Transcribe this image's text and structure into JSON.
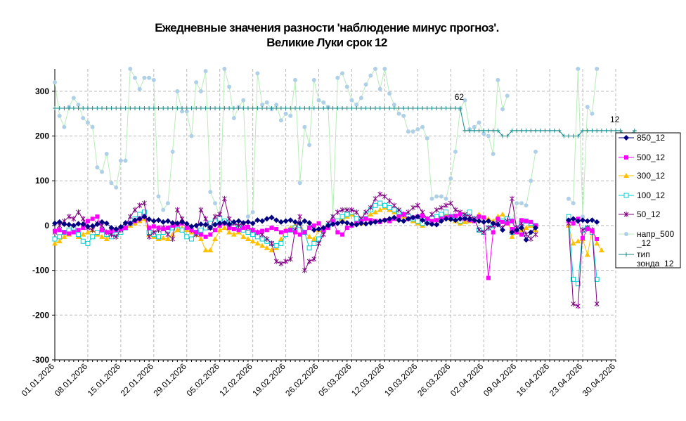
{
  "chart_data": {
    "type": "line",
    "title_line1": "Ежедневные значения разности 'наблюдение минус прогноз'.",
    "title_line2": "Великие Луки     срок 12",
    "ylim": [
      -300,
      350
    ],
    "yticks": [
      300,
      200,
      100,
      0,
      -100,
      -200,
      -300
    ],
    "xlim": [
      0,
      119
    ],
    "xtick_labels": [
      "01.01.2026",
      "08.01.2026",
      "15.01.2026",
      "22.01.2026",
      "29.01.2026",
      "05.02.2026",
      "12.02.2026",
      "19.02.2026",
      "26.02.2026",
      "05.03.2026",
      "12.03.2026",
      "19.03.2026",
      "26.03.2026",
      "02.04.2026",
      "09.04.2026",
      "16.04.2026",
      "23.04.2026",
      "30.04.2026"
    ],
    "xtick_days": [
      0,
      7,
      14,
      21,
      28,
      35,
      42,
      49,
      56,
      63,
      70,
      77,
      84,
      91,
      98,
      105,
      112,
      119
    ],
    "annotations": [
      {
        "text": "62",
        "x": 86,
        "y": 262
      },
      {
        "text": "12",
        "x": 119,
        "y": 212
      }
    ],
    "legend": [
      "850_12",
      "500_12",
      "300_12",
      "100_12",
      "50_12",
      "напр_500_12",
      "тип зонда_12"
    ],
    "legend_lines": [
      [
        "850_12"
      ],
      [
        "500_12"
      ],
      [
        "300_12"
      ],
      [
        "100_12"
      ],
      [
        "50_12"
      ],
      [
        "напр_500",
        "_12"
      ],
      [
        "тип",
        "зонда_12"
      ]
    ],
    "series": [
      {
        "name": "850_12",
        "color": "#000080",
        "marker": "diamond",
        "segments": [
          [
            0,
            [
              5,
              8,
              3,
              2,
              0,
              4,
              3,
              -2,
              -1,
              3,
              8,
              5,
              -5,
              -8,
              -3,
              6,
              5,
              12,
              15,
              20,
              14,
              10,
              12,
              8,
              10,
              6,
              5,
              8,
              4,
              -2,
              0,
              3,
              2,
              -5,
              2,
              5,
              6,
              3,
              8,
              10,
              6,
              8,
              5,
              12,
              10,
              15,
              18,
              12,
              8,
              10,
              12,
              8,
              5,
              10,
              6,
              -10,
              -8,
              -5,
              0,
              3,
              5,
              8,
              6,
              3,
              2,
              5,
              4,
              6,
              8,
              10,
              12,
              15,
              18,
              12,
              10,
              15,
              18,
              20,
              12,
              5,
              3,
              2,
              10,
              15,
              14,
              12,
              15,
              16,
              14,
              12,
              10,
              8,
              10,
              5,
              2,
              -10
            ]
          ],
          [
            97,
            [
              -15,
              -10,
              -5,
              -32,
              -15,
              -5
            ]
          ],
          [
            109,
            [
              12,
              15,
              10,
              12,
              10,
              12,
              8
            ]
          ]
        ]
      },
      {
        "name": "500_12",
        "color": "#ff00ff",
        "marker": "square",
        "segments": [
          [
            0,
            [
              -12,
              -10,
              -15,
              -18,
              -15,
              -10,
              -5,
              10,
              15,
              20,
              -10,
              -15,
              -12,
              -10,
              -8,
              -5,
              5,
              10,
              15,
              20,
              -5,
              -2,
              -5,
              -8,
              -5,
              0,
              2,
              5,
              -5,
              -10,
              -15,
              -20,
              -25,
              -20,
              -10,
              0,
              5,
              -5,
              -8,
              -10,
              -5,
              -3,
              -10,
              -15,
              -12,
              -10,
              -5,
              -8,
              -15,
              -12,
              -10,
              -15,
              -20,
              -15,
              -5,
              0,
              5,
              -10,
              -5,
              10,
              -15,
              -20,
              -5,
              0,
              5,
              10,
              15,
              12,
              10,
              8,
              12,
              10,
              15,
              20,
              25,
              15,
              18,
              20,
              22,
              15,
              10,
              12,
              15,
              18,
              20,
              22,
              25,
              15,
              12,
              10,
              20,
              18,
              -117,
              -15,
              15,
              8,
              5,
              10,
              -15,
              -20
            ]
          ],
          [
            97,
            [
              -8,
              -10,
              12,
              10,
              8,
              0
            ]
          ],
          [
            109,
            [
              10,
              5,
              15,
              -28,
              -8,
              -12,
              -30
            ]
          ]
        ]
      },
      {
        "name": "300_12",
        "color": "#ffc000",
        "marker": "triangle",
        "segments": [
          [
            0,
            [
              -40,
              -35,
              -25,
              -20,
              -15,
              -25,
              -20,
              -15,
              -10,
              -20,
              -25,
              -30,
              -25,
              -20,
              -15,
              -5,
              0,
              5,
              10,
              15,
              -20,
              -25,
              -30,
              -28,
              -30,
              -20,
              -10,
              -5,
              -10,
              -15,
              -20,
              -30,
              -55,
              -55,
              -30,
              -10,
              -5,
              -15,
              -20,
              -15,
              -25,
              -30,
              -35,
              -40,
              -45,
              -50,
              -55,
              -50,
              -30,
              -10,
              -5,
              0,
              5,
              -15,
              -25,
              -30,
              -10,
              -5,
              0,
              5,
              10,
              15,
              20,
              25,
              10,
              5,
              20,
              25,
              30,
              35,
              40,
              35,
              30,
              25,
              20,
              15,
              10,
              5,
              0,
              10,
              15,
              18,
              20,
              25,
              15,
              10,
              5,
              8,
              10,
              15,
              25,
              18,
              15,
              10,
              20,
              25,
              5,
              -10
            ]
          ],
          [
            97,
            [
              -25,
              -15,
              -10,
              -5,
              0,
              -10
            ]
          ],
          [
            109,
            [
              0,
              -40,
              -35,
              -30,
              -65,
              -10,
              -40,
              -55
            ]
          ]
        ]
      },
      {
        "name": "100_12",
        "color": "#00d0d0",
        "marker": "square-open",
        "segments": [
          [
            0,
            [
              -30,
              -25,
              -15,
              -10,
              -5,
              -20,
              -35,
              -40,
              -25,
              -15,
              -10,
              -20,
              -25,
              -20,
              -15,
              -5,
              5,
              15,
              25,
              30,
              -15,
              -20,
              -25,
              -15,
              -10,
              -5,
              0,
              -10,
              -25,
              -30,
              -15,
              -10,
              -5,
              5,
              10,
              15,
              10,
              5,
              0,
              -5,
              -10,
              -15,
              -20,
              -25,
              -30,
              -35,
              -40,
              -45,
              -40,
              -20,
              -10,
              -5,
              0,
              -15,
              -50,
              -40,
              -30,
              -10,
              0,
              5,
              10,
              20,
              25,
              30,
              15,
              10,
              25,
              35,
              45,
              50,
              45,
              40,
              35,
              30,
              25,
              20,
              15,
              10,
              5,
              10,
              15,
              20,
              25,
              30,
              20,
              15,
              10,
              20,
              30,
              15,
              -10,
              -15,
              -5,
              0,
              5,
              10,
              15,
              10,
              -10
            ]
          ],
          [
            97,
            [
              -15,
              -5,
              5,
              10,
              5,
              0
            ]
          ],
          [
            109,
            [
              20,
              -120,
              -130,
              -10,
              -5,
              -15,
              -120
            ]
          ]
        ]
      },
      {
        "name": "50_12",
        "color": "#800080",
        "marker": "star",
        "segments": [
          [
            0,
            [
              -15,
              0,
              10,
              20,
              15,
              30,
              15,
              -5,
              -10,
              5,
              0,
              -15,
              -20,
              -25,
              -10,
              0,
              20,
              35,
              45,
              50,
              -25,
              -15,
              -10,
              -5,
              -20,
              -30,
              35,
              15,
              0,
              -10,
              -20,
              35,
              15,
              -5,
              20,
              25,
              60,
              15,
              5,
              0,
              5,
              -5,
              -10,
              -15,
              -20,
              -30,
              -40,
              -80,
              -85,
              -80,
              -75,
              -10,
              20,
              -100,
              -80,
              -75,
              -40,
              -20,
              5,
              20,
              30,
              35,
              35,
              35,
              30,
              15,
              30,
              40,
              60,
              70,
              65,
              55,
              45,
              35,
              25,
              30,
              40,
              45,
              30,
              15,
              25,
              35,
              40,
              45,
              50,
              35,
              30,
              25,
              20,
              15,
              -10,
              -15,
              -5,
              0,
              5,
              -5,
              10,
              60,
              -10
            ]
          ],
          [
            97,
            [
              -10,
              -5,
              5,
              -20,
              -30,
              -20
            ]
          ],
          [
            109,
            [
              5,
              -175,
              -180,
              -10,
              -5,
              -10,
              -175
            ]
          ]
        ]
      },
      {
        "name": "напр_500_12",
        "color": "#b8ecb8",
        "marker": "circle",
        "markerColor": "#b0d0e8",
        "segments": [
          [
            0,
            [
              320,
              245,
              220,
              265,
              285,
              270,
              240,
              230,
              220,
              130,
              120,
              160,
              95,
              85,
              145,
              145,
              350,
              330,
              305,
              330,
              330,
              325,
              65,
              35,
              50,
              165,
              300,
              255,
              255,
              200,
              320,
              300,
              345,
              75,
              50,
              20,
              350,
              310,
              240,
              265,
              280,
              20,
              30,
              340,
              270,
              275,
              260,
              270,
              235,
              250,
              245,
              325,
              95,
              220,
              180,
              325,
              280,
              275,
              265,
              20,
              330,
              340,
              310,
              280,
              270,
              285,
              315,
              335,
              350,
              305,
              350,
              295,
              270,
              250,
              245,
              210,
              210,
              215,
              220,
              195,
              60,
              65,
              65,
              60,
              105,
              165,
              260,
              280,
              215,
              220,
              230,
              205,
              200,
              160,
              325,
              260,
              290
            ]
          ],
          [
            97,
            [
              10,
              50,
              50,
              45,
              100,
              165
            ]
          ],
          [
            109,
            [
              60,
              50,
              350,
              20,
              265,
              250,
              350
            ]
          ]
        ]
      },
      {
        "name": "тип зонда_12",
        "color": "#1a8a8a",
        "marker": "plus",
        "segments": [
          [
            0,
            [
              262,
              262,
              262,
              262,
              262,
              262,
              262,
              262,
              262,
              262,
              262,
              262,
              262,
              262,
              262,
              262,
              262,
              262,
              262,
              262,
              262,
              262,
              262,
              262,
              262,
              262,
              262,
              262,
              262,
              262,
              262,
              262,
              262,
              262,
              262,
              262,
              262,
              262,
              262,
              262,
              262,
              262,
              262,
              262,
              262,
              262,
              262,
              262,
              262,
              262,
              262,
              262,
              262,
              262,
              262,
              262,
              262,
              262,
              262,
              262,
              262,
              262,
              262,
              262,
              262,
              262,
              262,
              262,
              262,
              262,
              262,
              262,
              262,
              262,
              262,
              262,
              262,
              262,
              262,
              262,
              262,
              262,
              262,
              262,
              262,
              262,
              262,
              212,
              212,
              212,
              212,
              212,
              212,
              212,
              212,
              200,
              200,
              212,
              212,
              212,
              212,
              212,
              212,
              212,
              212,
              212,
              212,
              212,
              200,
              200,
              200,
              200,
              212,
              212,
              212,
              212,
              212,
              212,
              212,
              212,
              212,
              200,
              200,
              212
            ]
          ]
        ]
      }
    ]
  }
}
